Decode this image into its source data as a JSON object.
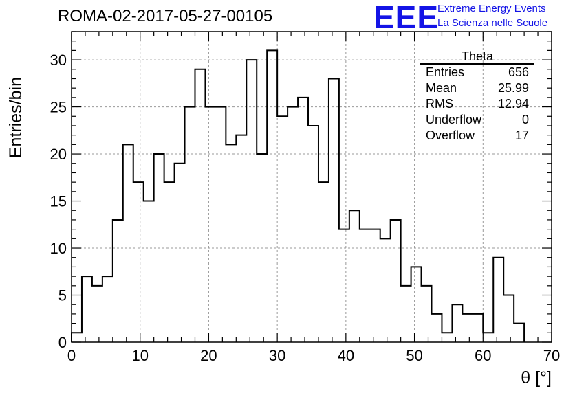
{
  "chart_data": {
    "type": "bar",
    "style": "step-histogram",
    "title": "ROMA-02-2017-05-27-00105",
    "xlabel": "θ [°]",
    "ylabel": "Entries/bin",
    "xlim": [
      0,
      70
    ],
    "ylim": [
      0,
      33
    ],
    "bin_width": 1.5,
    "bin_start": 0,
    "x_ticks": [
      0,
      10,
      20,
      30,
      40,
      50,
      60,
      70
    ],
    "y_ticks": [
      0,
      5,
      10,
      15,
      20,
      25,
      30
    ],
    "grid": true,
    "values": [
      1,
      7,
      6,
      7,
      13,
      21,
      17,
      15,
      20,
      17,
      19,
      25,
      29,
      25,
      25,
      21,
      22,
      30,
      20,
      31,
      24,
      25,
      26,
      23,
      17,
      28,
      12,
      14,
      12,
      12,
      11,
      13,
      6,
      8,
      6,
      3,
      1,
      4,
      3,
      3,
      1,
      9,
      5,
      2
    ]
  },
  "stats_box": {
    "title": "Theta",
    "rows": [
      {
        "label": "Entries",
        "value": "656"
      },
      {
        "label": "Mean",
        "value": "25.99"
      },
      {
        "label": "RMS",
        "value": "12.94"
      },
      {
        "label": "Underflow",
        "value": "0"
      },
      {
        "label": "Overflow",
        "value": "17"
      }
    ]
  },
  "logo": {
    "mark": "EEE",
    "line1": "Extreme Energy Events",
    "line2": "La Scienza nelle Scuole",
    "color": "#1414e6"
  }
}
